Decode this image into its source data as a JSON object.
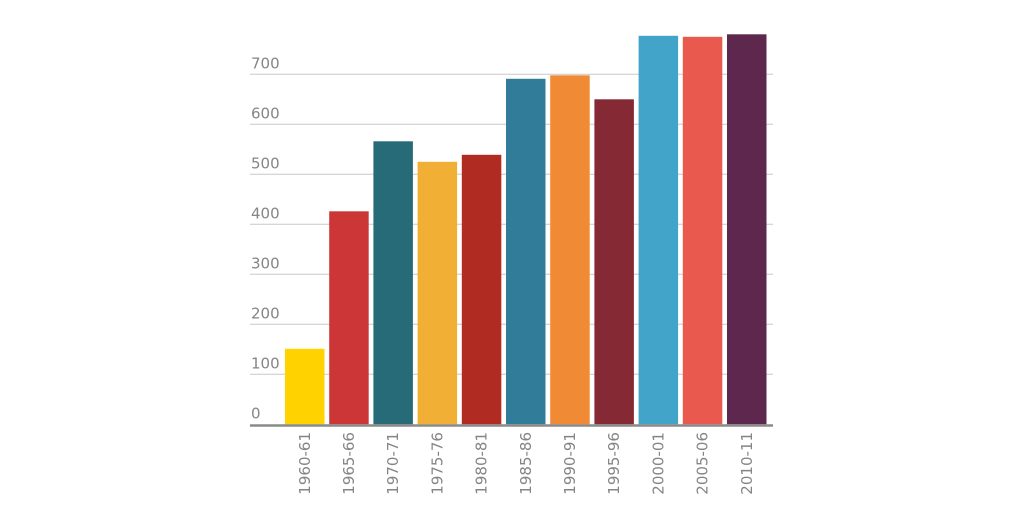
{
  "chart_data": {
    "type": "bar",
    "title": "",
    "xlabel": "",
    "ylabel": "",
    "categories": [
      "1960-61",
      "1965-66",
      "1970-71",
      "1975-76",
      "1980-81",
      "1985-86",
      "1990-91",
      "1995-96",
      "2000-01",
      "2005-06",
      "2010-11"
    ],
    "values": [
      151,
      426,
      566,
      525,
      539,
      691,
      698,
      650,
      777,
      775,
      780
    ],
    "colors": [
      "#FFD200",
      "#CD3636",
      "#276B78",
      "#F2AF36",
      "#B02C22",
      "#317C98",
      "#F18A35",
      "#852A35",
      "#42A4C8",
      "#E9594E",
      "#5E274E"
    ],
    "ylim": [
      0,
      800
    ],
    "yticks": [
      0,
      100,
      200,
      300,
      400,
      500,
      600,
      700
    ],
    "grid": true,
    "legend": "none"
  }
}
